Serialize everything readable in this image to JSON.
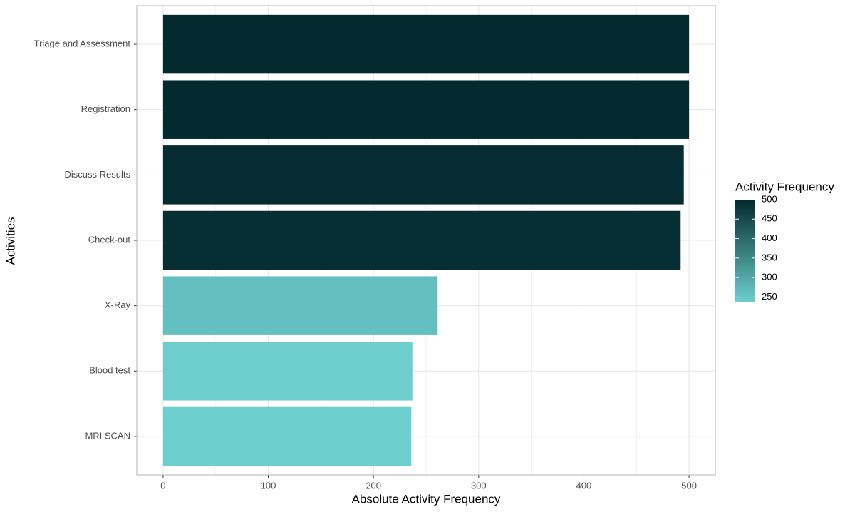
{
  "chart_data": {
    "type": "bar",
    "orientation": "horizontal",
    "x_label": "Absolute Activity Frequency",
    "y_label": "Activities",
    "categories": [
      "Triage and Assessment",
      "Registration",
      "Discuss Results",
      "Check-out",
      "X-Ray",
      "Blood test",
      "MRI SCAN"
    ],
    "values": [
      500,
      500,
      495,
      492,
      261,
      237,
      236
    ],
    "xlim": [
      -25,
      525
    ],
    "xticks": [
      0,
      100,
      200,
      300,
      400,
      500
    ],
    "x_minor_ticks": [
      50,
      150,
      250,
      350,
      450
    ],
    "grid": true,
    "legend_position": "right",
    "color_scale": {
      "title": "Activity Frequency",
      "low": "#6ecfcf",
      "high": "#032a2e",
      "lim": [
        236,
        500
      ],
      "ticks": [
        250,
        300,
        350,
        400,
        450,
        500
      ]
    }
  }
}
